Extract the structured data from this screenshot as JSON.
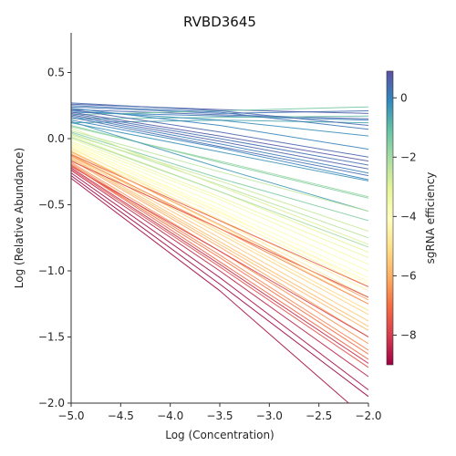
{
  "chart_data": {
    "type": "line",
    "title": "RVBD3645",
    "xlabel": "Log (Concentration)",
    "ylabel": "Log (Relative Abundance)",
    "xlim": [
      -5.0,
      -2.0
    ],
    "ylim": [
      -2.0,
      0.8
    ],
    "x_ticks": [
      "−5.0",
      "−4.5",
      "−4.0",
      "−3.5",
      "−3.0",
      "−2.5",
      "−2.0"
    ],
    "y_ticks": [
      "−2.0",
      "−1.5",
      "−1.0",
      "−0.5",
      "0.0",
      "0.5"
    ],
    "grid": false,
    "colorbar": {
      "label": "sgRNA efficiency",
      "range": [
        -9.0,
        0.9
      ],
      "ticks": [
        "0",
        "−2",
        "−4",
        "−6",
        "−8"
      ],
      "colormap": "Spectral",
      "stops": [
        "#9e0142",
        "#d53e4f",
        "#f46d43",
        "#fdae61",
        "#fee08b",
        "#ffffbf",
        "#e6f598",
        "#abdda4",
        "#66c2a5",
        "#3288bd",
        "#5e4fa2"
      ]
    },
    "series_style": "Many thin lines, each a guide; color mapped to sgRNA efficiency",
    "series": [
      {
        "x": [
          -5.0,
          -3.5,
          -2.0
        ],
        "y": [
          0.24,
          0.19,
          0.21
        ],
        "eff": 0.3
      },
      {
        "x": [
          -5.0,
          -3.5,
          -2.0
        ],
        "y": [
          0.22,
          0.18,
          0.15
        ],
        "eff": 0.5
      },
      {
        "x": [
          -5.0,
          -3.5,
          -2.0
        ],
        "y": [
          0.2,
          0.17,
          0.14
        ],
        "eff": 0.1
      },
      {
        "x": [
          -5.0,
          -3.5,
          -2.0
        ],
        "y": [
          0.26,
          0.22,
          0.19
        ],
        "eff": 0.6
      },
      {
        "x": [
          -5.0,
          -3.5,
          -2.0
        ],
        "y": [
          0.18,
          0.21,
          0.24
        ],
        "eff": -1.3
      },
      {
        "x": [
          -5.0,
          -3.5,
          -2.0
        ],
        "y": [
          0.15,
          0.16,
          0.17
        ],
        "eff": -1.0
      },
      {
        "x": [
          -5.0,
          -3.5,
          -2.0
        ],
        "y": [
          0.12,
          0.14,
          0.12
        ],
        "eff": -0.6
      },
      {
        "x": [
          -5.0,
          -3.5,
          -2.0
        ],
        "y": [
          0.27,
          0.21,
          0.1
        ],
        "eff": 0.4
      },
      {
        "x": [
          -5.0,
          -3.5,
          -2.0
        ],
        "y": [
          0.25,
          0.2,
          0.07
        ],
        "eff": 0.2
      },
      {
        "x": [
          -5.0,
          -3.5,
          -2.0
        ],
        "y": [
          0.21,
          0.14,
          0.02
        ],
        "eff": -0.2
      },
      {
        "x": [
          -5.0,
          -3.5,
          -2.0
        ],
        "y": [
          0.23,
          0.1,
          -0.08
        ],
        "eff": 0.0
      },
      {
        "x": [
          -5.0,
          -3.5,
          -2.0
        ],
        "y": [
          0.22,
          0.05,
          -0.14
        ],
        "eff": 0.5
      },
      {
        "x": [
          -5.0,
          -3.5,
          -2.0
        ],
        "y": [
          0.2,
          0.02,
          -0.17
        ],
        "eff": 0.7
      },
      {
        "x": [
          -5.0,
          -3.5,
          -2.0
        ],
        "y": [
          0.19,
          0.0,
          -0.2
        ],
        "eff": 0.3
      },
      {
        "x": [
          -5.0,
          -3.5,
          -2.0
        ],
        "y": [
          0.18,
          -0.02,
          -0.23
        ],
        "eff": 0.6
      },
      {
        "x": [
          -5.0,
          -3.5,
          -2.0
        ],
        "y": [
          0.17,
          -0.04,
          -0.26
        ],
        "eff": 0.1
      },
      {
        "x": [
          -5.0,
          -3.5,
          -2.0
        ],
        "y": [
          0.16,
          -0.06,
          -0.28
        ],
        "eff": 0.4
      },
      {
        "x": [
          -5.0,
          -3.5,
          -2.0
        ],
        "y": [
          0.14,
          -0.07,
          -0.31
        ],
        "eff": 0.0
      },
      {
        "x": [
          -5.0,
          -3.5,
          -2.0
        ],
        "y": [
          0.12,
          -0.1,
          -0.32
        ],
        "eff": -0.3
      },
      {
        "x": [
          -5.0,
          -3.5,
          -2.0
        ],
        "y": [
          0.1,
          -0.18,
          -0.45
        ],
        "eff": -1.6
      },
      {
        "x": [
          -5.0,
          -3.5,
          -2.0
        ],
        "y": [
          0.09,
          -0.17,
          -0.44
        ],
        "eff": -1.8
      },
      {
        "x": [
          -5.0,
          -3.5,
          -2.0
        ],
        "y": [
          0.13,
          -0.22,
          -0.55
        ],
        "eff": -0.4
      },
      {
        "x": [
          -5.0,
          -3.5,
          -2.0
        ],
        "y": [
          0.05,
          -0.3,
          -0.62
        ],
        "eff": -1.5
      },
      {
        "x": [
          -5.0,
          -3.5,
          -2.0
        ],
        "y": [
          0.04,
          -0.35,
          -0.75
        ],
        "eff": -2.3
      },
      {
        "x": [
          -5.0,
          -3.5,
          -2.0
        ],
        "y": [
          0.03,
          -0.32,
          -0.7
        ],
        "eff": -2.6
      },
      {
        "x": [
          -5.0,
          -3.5,
          -2.0
        ],
        "y": [
          0.08,
          -0.36,
          -0.8
        ],
        "eff": -2.9
      },
      {
        "x": [
          -5.0,
          -3.5,
          -2.0
        ],
        "y": [
          0.02,
          -0.4,
          -0.86
        ],
        "eff": -3.1
      },
      {
        "x": [
          -5.0,
          -3.5,
          -2.0
        ],
        "y": [
          0.0,
          -0.44,
          -0.9
        ],
        "eff": -3.3
      },
      {
        "x": [
          -5.0,
          -3.5,
          -2.0
        ],
        "y": [
          -0.02,
          -0.46,
          -0.95
        ],
        "eff": -3.6
      },
      {
        "x": [
          -5.0,
          -3.5,
          -2.0
        ],
        "y": [
          -0.03,
          -0.5,
          -1.0
        ],
        "eff": -3.8
      },
      {
        "x": [
          -5.0,
          -3.5,
          -2.0
        ],
        "y": [
          -0.05,
          -0.53,
          -1.05
        ],
        "eff": -4.0
      },
      {
        "x": [
          -5.0,
          -3.5,
          -2.0
        ],
        "y": [
          -0.06,
          -0.56,
          -1.08
        ],
        "eff": -4.2
      },
      {
        "x": [
          -5.0,
          -3.5,
          -2.0
        ],
        "y": [
          -0.08,
          -0.58,
          -1.12
        ],
        "eff": -4.4
      },
      {
        "x": [
          -5.0,
          -3.5,
          -2.0
        ],
        "y": [
          -0.1,
          -0.61,
          -1.15
        ],
        "eff": -4.5
      },
      {
        "x": [
          -5.0,
          -3.5,
          -2.0
        ],
        "y": [
          -0.04,
          -0.55,
          -1.1
        ],
        "eff": -4.1
      },
      {
        "x": [
          -5.0,
          -3.5,
          -2.0
        ],
        "y": [
          -0.07,
          -0.62,
          -1.2
        ],
        "eff": -4.7
      },
      {
        "x": [
          -5.0,
          -3.5,
          -2.0
        ],
        "y": [
          -0.09,
          -0.66,
          -1.25
        ],
        "eff": -4.9
      },
      {
        "x": [
          -5.0,
          -3.5,
          -2.0
        ],
        "y": [
          -0.11,
          -0.7,
          -1.3
        ],
        "eff": -5.1
      },
      {
        "x": [
          -5.0,
          -3.5,
          -2.0
        ],
        "y": [
          -0.12,
          -0.72,
          -1.33
        ],
        "eff": -5.3
      },
      {
        "x": [
          -5.0,
          -3.5,
          -2.0
        ],
        "y": [
          -0.13,
          -0.75,
          -1.38
        ],
        "eff": -5.5
      },
      {
        "x": [
          -5.0,
          -3.5,
          -2.0
        ],
        "y": [
          -0.15,
          -0.8,
          -1.45
        ],
        "eff": -5.8
      },
      {
        "x": [
          -5.0,
          -3.5,
          -2.0
        ],
        "y": [
          -0.16,
          -0.82,
          -1.5
        ],
        "eff": -6.1
      },
      {
        "x": [
          -5.0,
          -3.5,
          -2.0
        ],
        "y": [
          -0.18,
          -0.85,
          -1.55
        ],
        "eff": -6.4
      },
      {
        "x": [
          -5.0,
          -3.5,
          -2.0
        ],
        "y": [
          -0.14,
          -0.78,
          -1.42
        ],
        "eff": -5.7
      },
      {
        "x": [
          -5.0,
          -3.5,
          -2.0
        ],
        "y": [
          -0.19,
          -0.88,
          -1.6
        ],
        "eff": -6.7
      },
      {
        "x": [
          -5.0,
          -3.5,
          -2.0
        ],
        "y": [
          -0.2,
          -0.9,
          -1.63
        ],
        "eff": -7.0
      },
      {
        "x": [
          -5.0,
          -3.5,
          -2.0
        ],
        "y": [
          -0.12,
          -0.62,
          -1.12
        ],
        "eff": -7.4
      },
      {
        "x": [
          -5.0,
          -3.5,
          -2.0
        ],
        "y": [
          -0.17,
          -0.68,
          -1.2
        ],
        "eff": -7.8
      },
      {
        "x": [
          -5.0,
          -3.5,
          -2.0
        ],
        "y": [
          -0.21,
          -0.85,
          -1.5
        ],
        "eff": -8.0
      },
      {
        "x": [
          -5.0,
          -3.5,
          -2.0
        ],
        "y": [
          -0.22,
          -0.95,
          -1.7
        ],
        "eff": -8.3
      },
      {
        "x": [
          -5.0,
          -3.5,
          -2.0
        ],
        "y": [
          -0.24,
          -1.0,
          -1.8
        ],
        "eff": -8.5
      },
      {
        "x": [
          -5.0,
          -3.5,
          -2.0
        ],
        "y": [
          -0.26,
          -1.05,
          -1.9
        ],
        "eff": -8.8
      },
      {
        "x": [
          -5.0,
          -3.5,
          -2.0
        ],
        "y": [
          -0.28,
          -1.1,
          -1.95
        ],
        "eff": -9.0
      },
      {
        "x": [
          -5.0,
          -3.5,
          -2.2
        ],
        "y": [
          -0.3,
          -1.15,
          -2.0
        ],
        "eff": -8.9
      },
      {
        "x": [
          -5.0,
          -3.5,
          -2.0
        ],
        "y": [
          -0.2,
          -0.93,
          -1.67
        ],
        "eff": -7.2
      },
      {
        "x": [
          -5.0,
          -3.5,
          -2.0
        ],
        "y": [
          -0.23,
          -0.97,
          -1.73
        ],
        "eff": -7.6
      },
      {
        "x": [
          -5.0,
          -3.5,
          -2.0
        ],
        "y": [
          -0.13,
          -0.68,
          -1.25
        ],
        "eff": -6.6
      },
      {
        "x": [
          -5.0,
          -3.5,
          -2.0
        ],
        "y": [
          -0.1,
          -0.65,
          -1.22
        ],
        "eff": -6.2
      },
      {
        "x": [
          -5.0,
          -3.5,
          -2.0
        ],
        "y": [
          0.01,
          -0.4,
          -0.82
        ],
        "eff": -2.0
      },
      {
        "x": [
          -5.0,
          -3.5,
          -2.0
        ],
        "y": [
          0.06,
          -0.25,
          -0.55
        ],
        "eff": -2.4
      }
    ]
  }
}
